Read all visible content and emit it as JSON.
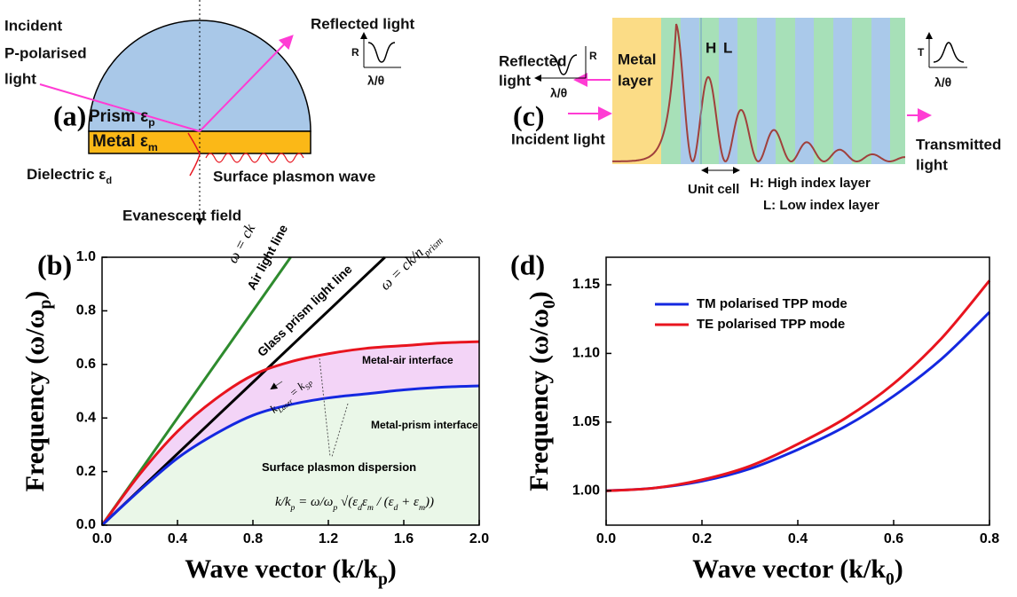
{
  "diagram_a": {
    "panel": "(a)",
    "incident": [
      "Incident",
      "P-polarised",
      "light"
    ],
    "reflected": "Reflected light",
    "r_axis": "R",
    "x_axis": "λ/θ",
    "prism": [
      "Prism ε",
      "p"
    ],
    "metal": [
      "Metal ε",
      "m"
    ],
    "dielectric": [
      "Dielectric ε",
      "d"
    ],
    "spw": "Surface plasmon wave",
    "evanescent": "Evanescent field"
  },
  "diagram_c": {
    "panel": "(c)",
    "reflected": [
      "Reflected",
      "light"
    ],
    "r_axis": "R",
    "x_axis_r": "λ/θ",
    "metal": [
      "Metal",
      "layer"
    ],
    "h": "H",
    "l": "L",
    "incident": "Incident light",
    "transmitted": [
      "Transmitted",
      "light"
    ],
    "t_axis": "T",
    "x_axis_t": "λ/θ",
    "unit_cell": "Unit cell",
    "h_legend": "H: High index layer",
    "l_legend": "L: Low index layer"
  },
  "chart_data": [
    {
      "type": "line",
      "panel": "(b)",
      "xlabel": [
        "Wave vector (k/k",
        "p",
        ")"
      ],
      "ylabel": [
        "Frequency (ω/ω",
        "p",
        ")"
      ],
      "xlim": [
        0,
        2
      ],
      "ylim": [
        0,
        1
      ],
      "xticks": [
        {
          "value": 0,
          "label": "0.0"
        },
        0.4,
        0.8,
        1.2,
        1.6,
        {
          "value": 2,
          "label": "2.0"
        }
      ],
      "yticks": [
        {
          "value": 0,
          "label": "0.0"
        },
        0.2,
        0.4,
        0.6,
        0.8,
        {
          "value": 1,
          "label": "1.0"
        }
      ],
      "series": [
        {
          "color": "#2e8b2e",
          "x": [
            0,
            1
          ],
          "values": [
            0,
            1
          ]
        },
        {
          "color": "#000000",
          "x": [
            0,
            1.5
          ],
          "values": [
            0,
            1
          ]
        },
        {
          "color": "#e8141e",
          "x": [
            0,
            0.2,
            0.4,
            0.6,
            0.8,
            1.0,
            1.2,
            1.4,
            1.6,
            1.8,
            2.0
          ],
          "values": [
            0,
            0.19,
            0.35,
            0.47,
            0.56,
            0.61,
            0.64,
            0.66,
            0.67,
            0.68,
            0.685
          ]
        },
        {
          "color": "#1428e0",
          "x": [
            0,
            0.2,
            0.4,
            0.6,
            0.8,
            1.0,
            1.2,
            1.4,
            1.6,
            1.8,
            2.0
          ],
          "values": [
            0,
            0.13,
            0.25,
            0.34,
            0.41,
            0.45,
            0.475,
            0.49,
            0.505,
            0.515,
            0.52
          ]
        }
      ],
      "annotations": [
        [
          "ω = ck"
        ],
        [
          "Air light line"
        ],
        [
          "Glass prism light line"
        ],
        [
          "ω = ck/n",
          "prism"
        ],
        [
          "Metal-air interface"
        ],
        [
          "Metal-prism interface"
        ],
        [
          "k",
          "Laser",
          " = k",
          "SP"
        ],
        [
          "Surface plasmon dispersion"
        ],
        [
          "k/k",
          "p",
          " = ω/ω",
          "p",
          " √(ε",
          "d",
          "ε",
          "m",
          " / (ε",
          "d",
          " + ε",
          "m",
          "))"
        ]
      ]
    },
    {
      "type": "line",
      "panel": "(d)",
      "xlabel": [
        "Wave vector (k/k",
        "0",
        ")"
      ],
      "ylabel": [
        "Frequency (ω/ω",
        "0",
        ")"
      ],
      "xlim": [
        0,
        0.8
      ],
      "ylim": [
        0.975,
        1.17
      ],
      "xticks": [
        {
          "value": 0,
          "label": "0.0"
        },
        0.2,
        0.4,
        0.6,
        0.8
      ],
      "yticks": [
        {
          "value": 1,
          "label": "1.00"
        },
        1.05,
        {
          "value": 1.1,
          "label": "1.10"
        },
        1.15
      ],
      "legend": "upper left",
      "series": [
        {
          "name": "TM polarised TPP mode",
          "color": "#1428e0",
          "x": [
            0,
            0.1,
            0.2,
            0.3,
            0.4,
            0.5,
            0.6,
            0.7,
            0.8
          ],
          "values": [
            1.0,
            1.002,
            1.007,
            1.016,
            1.03,
            1.047,
            1.069,
            1.096,
            1.13
          ]
        },
        {
          "name": "TE polarised TPP mode",
          "color": "#e8141e",
          "x": [
            0,
            0.1,
            0.2,
            0.3,
            0.4,
            0.5,
            0.6,
            0.7,
            0.8
          ],
          "values": [
            1.0,
            1.002,
            1.008,
            1.018,
            1.034,
            1.053,
            1.078,
            1.111,
            1.153
          ]
        }
      ]
    }
  ]
}
